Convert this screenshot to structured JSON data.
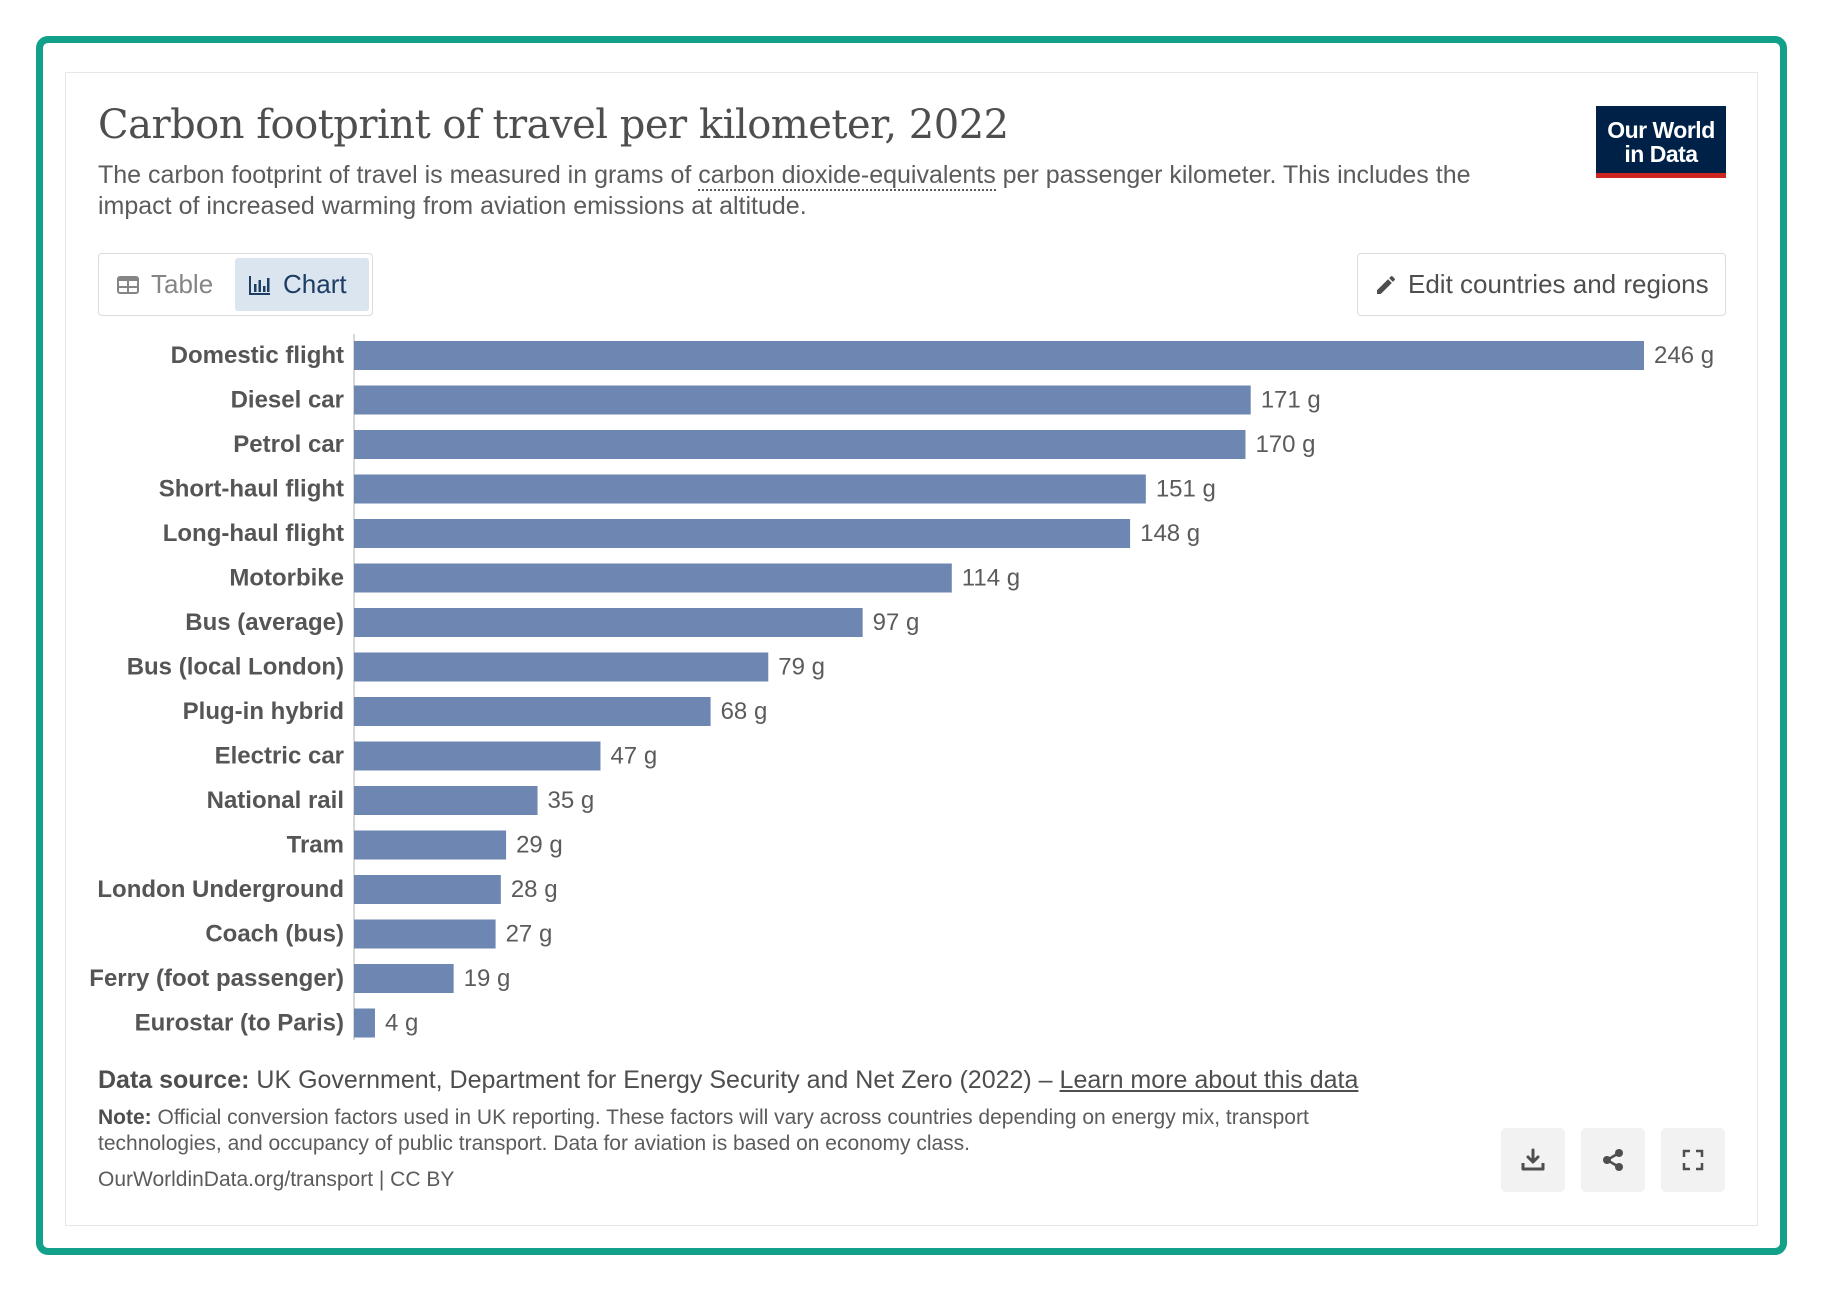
{
  "header": {
    "title": "Carbon footprint of travel per kilometer, 2022",
    "subtitle_before": "The carbon footprint of travel is measured in grams of ",
    "subtitle_term": "carbon dioxide-equivalents",
    "subtitle_after": " per passenger kilometer. This includes the impact of increased warming from aviation emissions at altitude.",
    "logo_line1": "Our World",
    "logo_line2": "in Data"
  },
  "controls": {
    "tab_table": "Table",
    "tab_chart": "Chart",
    "active_tab": "Chart",
    "edit_button": "Edit countries and regions"
  },
  "colors": {
    "bar": "#6e86b2",
    "accent_border": "#13a08a",
    "logo_bg": "#002147",
    "logo_stripe": "#ce261e"
  },
  "chart_data": {
    "type": "bar",
    "orientation": "horizontal",
    "unit": "g",
    "categories": [
      "Domestic flight",
      "Diesel car",
      "Petrol car",
      "Short-haul flight",
      "Long-haul flight",
      "Motorbike",
      "Bus (average)",
      "Bus (local London)",
      "Plug-in hybrid",
      "Electric car",
      "National rail",
      "Tram",
      "London Underground",
      "Coach (bus)",
      "Ferry (foot passenger)",
      "Eurostar (to Paris)"
    ],
    "values": [
      246,
      171,
      170,
      151,
      148,
      114,
      97,
      79,
      68,
      47,
      35,
      29,
      28,
      27,
      19,
      4
    ],
    "value_labels": [
      "246 g",
      "171 g",
      "170 g",
      "151 g",
      "148 g",
      "114 g",
      "97 g",
      "79 g",
      "68 g",
      "47 g",
      "35 g",
      "29 g",
      "28 g",
      "27 g",
      "19 g",
      "4 g"
    ],
    "xlim": [
      0,
      246
    ],
    "grid": false
  },
  "footer": {
    "source_label": "Data source:",
    "source_text": " UK Government, Department for Energy Security and Net Zero (2022) – ",
    "source_link": "Learn more about this data",
    "note_label": "Note:",
    "note_text": " Official conversion factors used in UK reporting. These factors will vary across countries depending on energy mix, transport technologies, and occupancy of public transport. Data for aviation is based on economy class.",
    "url": "OurWorldinData.org/transport | CC BY"
  },
  "actions": {
    "download_icon": "download-icon",
    "share_icon": "share-icon",
    "fullscreen_icon": "fullscreen-icon"
  }
}
